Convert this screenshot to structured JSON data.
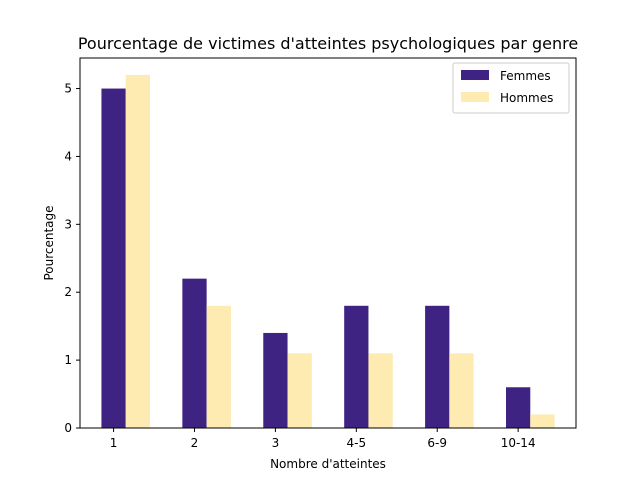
{
  "chart_data": {
    "type": "bar",
    "title": "Pourcentage de victimes d'atteintes psychologiques par genre",
    "xlabel": "Nombre d'atteintes",
    "ylabel": "Pourcentage",
    "categories": [
      "1",
      "2",
      "3",
      "4-5",
      "6-9",
      "10-14"
    ],
    "series": [
      {
        "name": "Femmes",
        "color": "#3f2382",
        "values": [
          5.0,
          2.2,
          1.4,
          1.8,
          1.8,
          0.6
        ]
      },
      {
        "name": "Hommes",
        "color": "#fdebb2",
        "values": [
          5.2,
          1.8,
          1.1,
          1.1,
          1.1,
          0.2
        ]
      }
    ],
    "ylim": [
      0,
      5.45
    ],
    "yticks": [
      0,
      1,
      2,
      3,
      4,
      5
    ],
    "grid": false,
    "legend_position": "top-right"
  }
}
